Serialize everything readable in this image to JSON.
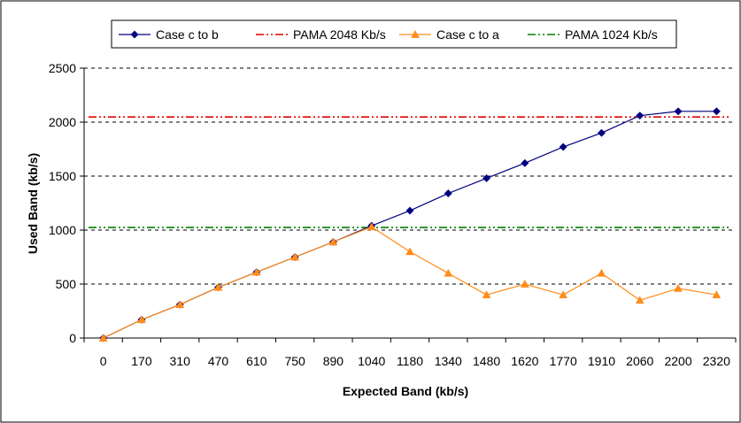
{
  "chart_data": {
    "type": "line",
    "xlabel": "Expected Band (kb/s)",
    "ylabel": "Used Band (kb/s)",
    "categories": [
      "0",
      "170",
      "310",
      "470",
      "610",
      "750",
      "890",
      "1040",
      "1180",
      "1340",
      "1480",
      "1620",
      "1770",
      "1910",
      "2060",
      "2200",
      "2320"
    ],
    "ylim": [
      0,
      2500
    ],
    "yticks": [
      0,
      500,
      1000,
      1500,
      2000,
      2500
    ],
    "grid": "horizontal dashed",
    "legend_position": "top",
    "series": [
      {
        "name": "Case c to b",
        "color": "#000080",
        "marker": "diamond",
        "values": [
          0,
          170,
          310,
          470,
          610,
          750,
          890,
          1040,
          1180,
          1340,
          1480,
          1620,
          1770,
          1900,
          2060,
          2100,
          2100
        ]
      },
      {
        "name": "Case c to a",
        "color": "#FF8C1A",
        "marker": "triangle",
        "values": [
          0,
          170,
          310,
          470,
          610,
          750,
          890,
          1030,
          800,
          600,
          400,
          500,
          400,
          600,
          350,
          460,
          400
        ]
      }
    ],
    "reference_lines": [
      {
        "name": "PAMA 2048 Kb/s",
        "value": 2048,
        "color": "#E00000",
        "style": "dash-dot-dot"
      },
      {
        "name": "PAMA 1024 Kb/s",
        "value": 1024,
        "color": "#008000",
        "style": "dash-dot-dot"
      }
    ],
    "legend_order": [
      "Case c to b",
      "PAMA 2048 Kb/s",
      "Case c to a",
      "PAMA 1024 Kb/s"
    ]
  }
}
